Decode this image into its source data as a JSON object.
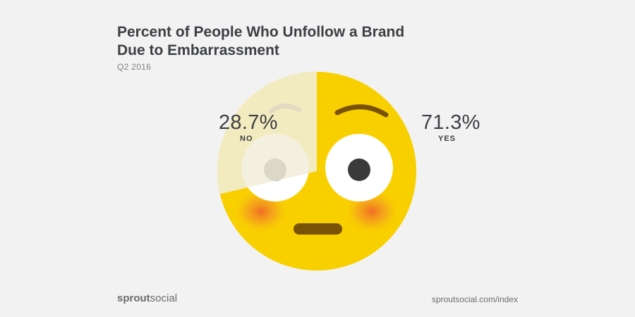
{
  "header": {
    "title_line1": "Percent of People Who Unfollow a Brand",
    "title_line2": "Due to Embarrassment",
    "subtitle": "Q2 2016"
  },
  "chart_data": {
    "type": "pie",
    "title": "Percent of People Who Unfollow a Brand Due to Embarrassment",
    "subtitle": "Q2 2016",
    "slices": [
      {
        "label": "YES",
        "value": 71.3,
        "display": "71.3%",
        "color": "#f8d000"
      },
      {
        "label": "NO",
        "value": 28.7,
        "display": "28.7%",
        "color": "#f1eedb"
      }
    ]
  },
  "footer": {
    "brand_bold": "sprout",
    "brand_rest": "social",
    "url": "sproutsocial.com/index"
  }
}
